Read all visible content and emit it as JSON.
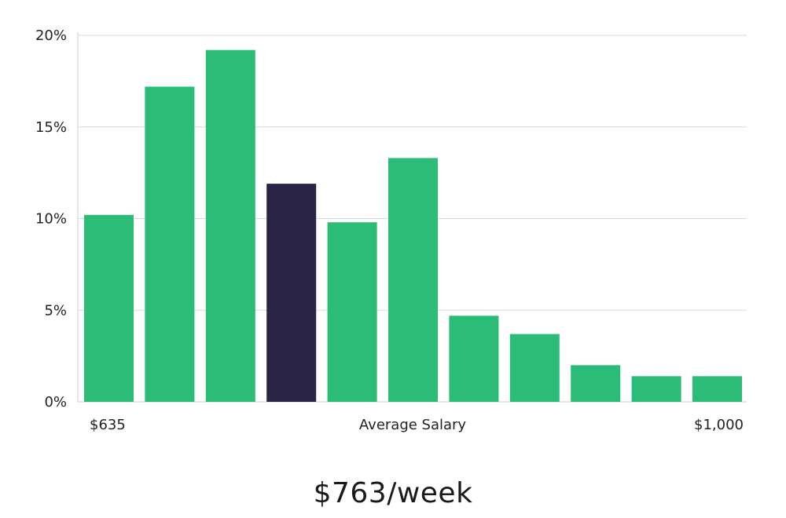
{
  "chart_data": {
    "type": "bar",
    "values": [
      10.2,
      17.2,
      19.2,
      11.9,
      9.8,
      13.3,
      4.7,
      3.7,
      2.0,
      1.4,
      1.4
    ],
    "highlight_index": 3,
    "colors": {
      "bar": "#2bbd77",
      "highlight": "#2a2546"
    },
    "ylim": [
      0,
      20
    ],
    "yticks": [
      0,
      5,
      10,
      15,
      20
    ],
    "y_tick_suffix": "%",
    "grid": true,
    "x_left_label": "$635",
    "x_center_label": "Average Salary",
    "x_right_label": "$1,000"
  },
  "headline": "$763/week"
}
